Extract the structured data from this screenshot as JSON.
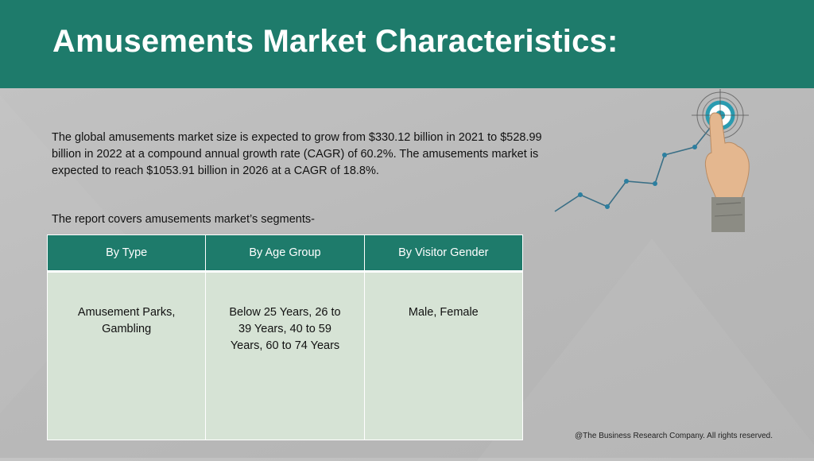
{
  "header": {
    "title": "Amusements Market Characteristics:",
    "background_color": "#1e7b6b"
  },
  "intro": {
    "text": "The global amusements market size is expected to grow from $330.12 billion in 2021 to $528.99 billion in 2022 at a compound annual growth rate (CAGR) of 60.2%. The amusements market is expected to reach $1053.91 billion in 2026 at a CAGR of 18.8%."
  },
  "segments": {
    "label": "The report covers amusements market’s segments-",
    "columns": [
      {
        "header": "By Type",
        "value": "Amusement Parks, Gambling"
      },
      {
        "header": "By Age Group",
        "value": "Below 25 Years, 26 to 39 Years, 40 to 59 Years, 60 to 74 Years"
      },
      {
        "header": "By Visitor Gender",
        "value": "Male, Female"
      }
    ],
    "header_color": "#1e7b6b",
    "cell_color": "#d6e3d5"
  },
  "illustration": {
    "icon": "hand-touching-target-with-growth-line-icon",
    "accent_color": "#2a9bb0"
  },
  "footer": {
    "copyright": "@The Business Research Company. All rights reserved."
  }
}
